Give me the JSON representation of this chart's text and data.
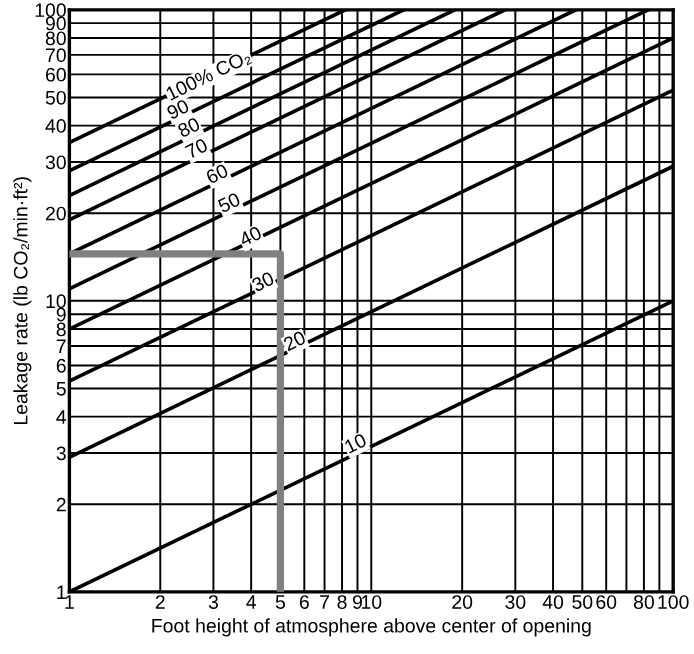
{
  "chart_data": {
    "type": "line",
    "xlabel": "Foot height of atmosphere above center of opening",
    "ylabel": "Leakage rate (lb CO₂/min·ft²)",
    "log": "xy",
    "grid": true,
    "marker": "none",
    "line_style": "solid",
    "xlim": [
      1,
      100
    ],
    "ylim": [
      1,
      100
    ],
    "xticks": [
      1,
      2,
      3,
      4,
      5,
      6,
      7,
      8,
      9,
      10,
      20,
      30,
      40,
      50,
      60,
      {
        "value": 70,
        "label": null
      },
      80,
      {
        "value": 90,
        "label": null
      },
      100
    ],
    "yticks": [
      1,
      2,
      3,
      4,
      5,
      6,
      7,
      8,
      9,
      10,
      20,
      30,
      40,
      50,
      60,
      70,
      80,
      90,
      100
    ],
    "series": [
      {
        "color": "#000000",
        "x": [
          1,
          8.2
        ],
        "values": [
          35,
          100
        ]
      },
      {
        "color": "#000000",
        "x": [
          1,
          12.8
        ],
        "values": [
          28,
          100
        ]
      },
      {
        "color": "#000000",
        "x": [
          1,
          18.9
        ],
        "values": [
          23,
          100
        ]
      },
      {
        "color": "#000000",
        "x": [
          1,
          27.7
        ],
        "values": [
          19,
          100
        ]
      },
      {
        "color": "#000000",
        "x": [
          1,
          47.6
        ],
        "values": [
          14.5,
          100
        ]
      },
      {
        "color": "#000000",
        "x": [
          1,
          82.6
        ],
        "values": [
          11,
          100
        ]
      },
      {
        "color": "#000000",
        "x": [
          1,
          100
        ],
        "values": [
          8,
          80
        ]
      },
      {
        "color": "#000000",
        "x": [
          1,
          100
        ],
        "values": [
          5.3,
          53
        ]
      },
      {
        "color": "#000000",
        "x": [
          1,
          100
        ],
        "values": [
          2.9,
          29
        ]
      },
      {
        "color": "#000000",
        "x": [
          1,
          100
        ],
        "values": [
          1,
          10
        ]
      },
      {
        "color": "#808080",
        "x": [
          1,
          5,
          5
        ],
        "values": [
          14.5,
          14.5,
          1
        ]
      }
    ],
    "annotations": [
      {
        "text": "100% CO₂",
        "x": 2.9,
        "y": 59
      },
      {
        "text": "90",
        "x": 2.3,
        "y": 45
      },
      {
        "text": "80",
        "x": 2.5,
        "y": 39
      },
      {
        "text": "70",
        "x": 2.65,
        "y": 33
      },
      {
        "text": "60",
        "x": 3.1,
        "y": 27
      },
      {
        "text": "50",
        "x": 3.4,
        "y": 21.5
      },
      {
        "text": "40",
        "x": 4.0,
        "y": 16.5
      },
      {
        "text": "30",
        "x": 4.4,
        "y": 11.5
      },
      {
        "text": "20",
        "x": 5.6,
        "y": 7.2
      },
      {
        "text": "10",
        "x": 8.9,
        "y": 3.2
      }
    ]
  }
}
